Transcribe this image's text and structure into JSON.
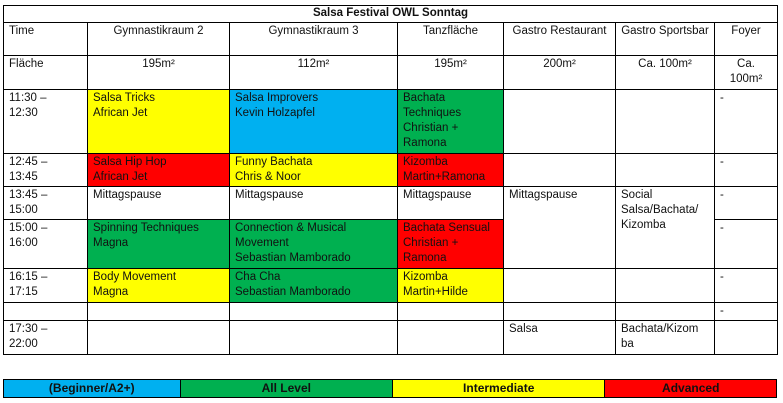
{
  "title": "Salsa Festival OWL Sonntag",
  "headers": [
    "Time",
    "Gymnastikraum 2",
    "Gymnastikraum 3",
    "Tanzfläche",
    "Gastro Restaurant",
    "Gastro Sportsbar",
    "Foyer"
  ],
  "area": [
    "Fläche",
    "195m²",
    "112m²",
    "195m²",
    "200m²",
    "Ca. 100m²",
    "Ca. 100m²"
  ],
  "legend": [
    {
      "label": "(Beginner/A2+)",
      "color": "#00b0f0"
    },
    {
      "label": "All Level",
      "color": "#00b050"
    },
    {
      "label": "Intermediate",
      "color": "#ffff00"
    },
    {
      "label": "Advanced",
      "color": "#ff0000"
    }
  ],
  "rows": [
    [
      {
        "lines": [
          "11:30 –",
          "12:30"
        ]
      },
      {
        "lines": [
          "Salsa Tricks",
          "African Jet"
        ],
        "level": 2
      },
      {
        "lines": [
          "Salsa Improvers",
          "Kevin Holzapfel"
        ],
        "level": 0
      },
      {
        "lines": [
          "Bachata Techniques Christian + Ramona"
        ],
        "level": 1
      },
      {
        "lines": []
      },
      {
        "lines": []
      },
      {
        "lines": [
          "-"
        ]
      }
    ],
    [
      {
        "lines": [
          "12:45 –",
          "13:45"
        ]
      },
      {
        "lines": [
          "Salsa Hip Hop",
          "African Jet"
        ],
        "level": 3
      },
      {
        "lines": [
          "Funny Bachata",
          "Chris & Noor"
        ],
        "level": 2
      },
      {
        "lines": [
          "Kizomba",
          "Martin+Ramona"
        ],
        "level": 3
      },
      {
        "lines": []
      },
      {
        "lines": []
      },
      {
        "lines": [
          "-"
        ]
      }
    ],
    [
      {
        "lines": [
          "13:45 –",
          "15:00"
        ]
      },
      {
        "lines": [
          "Mittagspause"
        ]
      },
      {
        "lines": [
          "Mittagspause"
        ]
      },
      {
        "lines": [
          "Mittagspause"
        ]
      },
      {
        "lines": [
          "Mittagspause"
        ],
        "rowspan": 2
      },
      {
        "lines": [
          "Social Salsa/Bachata/ Kizomba"
        ],
        "rowspan": 2
      },
      {
        "lines": [
          "-"
        ]
      }
    ],
    [
      {
        "lines": [
          "15:00 –",
          "16:00"
        ]
      },
      {
        "lines": [
          "Spinning Techniques",
          "Magna"
        ],
        "level": 1
      },
      {
        "lines": [
          "Connection & Musical Movement",
          "Sebastian Mamborado"
        ],
        "level": 1
      },
      {
        "lines": [
          "Bachata Sensual Christian + Ramona"
        ],
        "level": 3
      },
      {
        "lines": [
          "-"
        ]
      }
    ],
    [
      {
        "lines": [
          "16:15 –",
          "17:15"
        ]
      },
      {
        "lines": [
          "Body Movement",
          "Magna"
        ],
        "level": 2
      },
      {
        "lines": [
          "Cha Cha",
          "Sebastian Mamborado"
        ],
        "level": 1
      },
      {
        "lines": [
          "Kizomba",
          "Martin+Hilde"
        ],
        "level": 2
      },
      {
        "lines": []
      },
      {
        "lines": []
      },
      {
        "lines": [
          "-"
        ]
      }
    ],
    [
      {
        "lines": []
      },
      {
        "lines": []
      },
      {
        "lines": []
      },
      {
        "lines": []
      },
      {
        "lines": []
      },
      {
        "lines": []
      },
      {
        "lines": [
          "-"
        ]
      }
    ],
    [
      {
        "lines": [
          "17:30 –",
          "22:00"
        ]
      },
      {
        "lines": []
      },
      {
        "lines": []
      },
      {
        "lines": []
      },
      {
        "lines": [
          "Salsa"
        ]
      },
      {
        "lines": [
          "Bachata/Kizom ba"
        ]
      },
      {
        "lines": []
      }
    ]
  ]
}
